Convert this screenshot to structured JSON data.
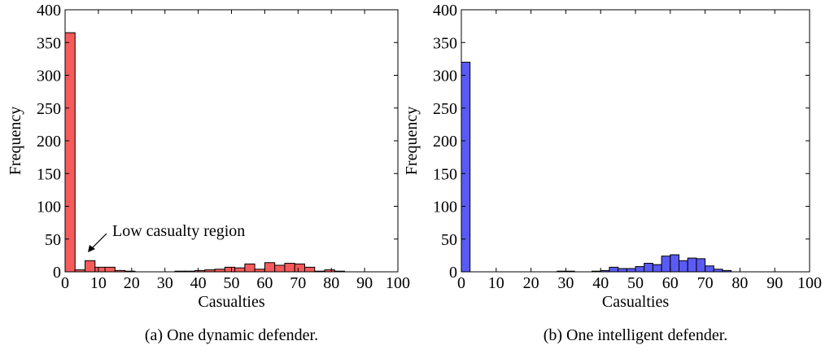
{
  "chart_data": [
    {
      "type": "histogram",
      "caption": "(a) One dynamic defender.",
      "xlabel": "Casualties",
      "ylabel": "Frequency",
      "annotation": "Low casualty region",
      "color": "#f65a5a",
      "bins": [
        0,
        3,
        6,
        9,
        12,
        15,
        18,
        21,
        24,
        27,
        30,
        33,
        36,
        39,
        42,
        45,
        48,
        51,
        54,
        57,
        60,
        63,
        66,
        69,
        72,
        75,
        78,
        81,
        84
      ],
      "values": [
        365,
        3,
        17,
        7,
        7,
        2,
        1,
        0,
        0,
        0,
        0,
        1,
        1,
        2,
        3,
        4,
        7,
        6,
        12,
        4,
        14,
        10,
        13,
        12,
        7,
        1,
        3,
        1
      ],
      "xlim": [
        0,
        100
      ],
      "ylim": [
        0,
        400
      ],
      "xticks": [
        0,
        10,
        20,
        30,
        40,
        50,
        60,
        70,
        80,
        90,
        100
      ],
      "yticks": [
        0,
        50,
        100,
        150,
        200,
        250,
        300,
        350,
        400
      ]
    },
    {
      "type": "histogram",
      "caption": "(b) One intelligent defender.",
      "xlabel": "Casualties",
      "ylabel": "Frequency",
      "color": "#5a5af6",
      "bins": [
        0,
        2.5,
        5,
        7.5,
        10,
        12.5,
        15,
        17.5,
        20,
        22.5,
        25,
        27.5,
        30,
        32.5,
        35,
        37.5,
        40,
        42.5,
        45,
        47.5,
        50,
        52.5,
        55,
        57.5,
        60,
        62.5,
        65,
        67.5,
        70,
        72.5,
        75,
        77.5,
        80,
        82.5,
        85
      ],
      "values": [
        320,
        0,
        0,
        0,
        0,
        0,
        0,
        0,
        0,
        0,
        0,
        1,
        1,
        0,
        0,
        1,
        2,
        7,
        5,
        5,
        8,
        13,
        11,
        24,
        26,
        17,
        21,
        20,
        9,
        4,
        2,
        0,
        0,
        0
      ],
      "xlim": [
        0,
        100
      ],
      "ylim": [
        0,
        400
      ],
      "xticks": [
        0,
        10,
        20,
        30,
        40,
        50,
        60,
        70,
        80,
        90,
        100
      ],
      "yticks": [
        0,
        50,
        100,
        150,
        200,
        250,
        300,
        350,
        400
      ]
    }
  ]
}
